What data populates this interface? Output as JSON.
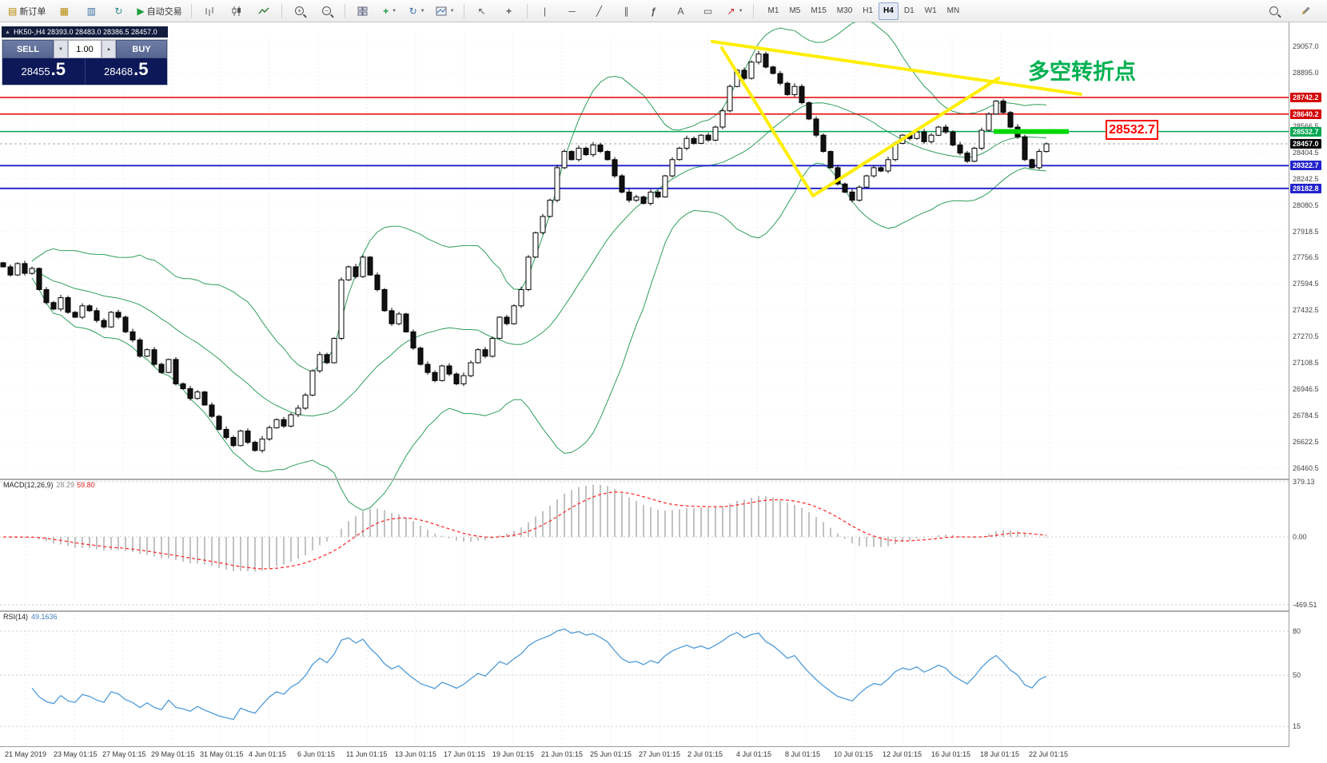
{
  "toolbar": {
    "new_order_label": "新订单",
    "auto_trading_label": "自动交易",
    "timeframes": [
      "M1",
      "M5",
      "M15",
      "M30",
      "H1",
      "H4",
      "D1",
      "W1",
      "MN"
    ],
    "active_timeframe": "H4"
  },
  "icons": {
    "market_watch": "▦",
    "data_window": "▥",
    "navigator": "▤",
    "play": "▶",
    "plus": "+",
    "minus": "−",
    "refresh": "↻",
    "cursor": "↖",
    "crosshair": "+",
    "vline": "|",
    "hline": "─",
    "tline": "╱",
    "channel": "∥",
    "fibo": "ƒ",
    "text": "A",
    "label": "▭",
    "arrows": "↗",
    "caret": "▼",
    "caret_up": "▲"
  },
  "symbol_bar": {
    "text": "HK50-,H4  28393.0 28483.0 28386.5 28457.0"
  },
  "trade_panel": {
    "sell_label": "SELL",
    "buy_label": "BUY",
    "volume": "1.00",
    "sell_price_main": "28455",
    "sell_price_big": ".5",
    "buy_price_main": "28468",
    "buy_price_big": ".5"
  },
  "annotations": {
    "turning_point": "多空转折点",
    "price_tag": "28532.7"
  },
  "price_scale": {
    "plain": [
      29057.0,
      28895.0,
      28566.5,
      28404.5,
      28242.5,
      28080.5,
      27918.5,
      27756.5,
      27594.5,
      27432.5,
      27270.5,
      27108.5,
      26946.5,
      26784.5,
      26622.5,
      26460.5
    ],
    "badges": [
      {
        "value": "28742.2",
        "color": "#d40000"
      },
      {
        "value": "28640.2",
        "color": "#d40000"
      },
      {
        "value": "28532.7",
        "color": "#00a651"
      },
      {
        "value": "28457.0",
        "color": "#000000"
      },
      {
        "value": "28322.7",
        "color": "#2222cc"
      },
      {
        "value": "28182.8",
        "color": "#2222cc"
      }
    ]
  },
  "macd_panel": {
    "label": "MACD(12,26,9)",
    "value_main": "28.29",
    "value_signal": "59.80",
    "axis": [
      "379.13",
      "0.00",
      "-469.51"
    ]
  },
  "rsi_panel": {
    "label": "RSI(14)",
    "value": "49.1636",
    "axis": [
      "80",
      "50",
      "15"
    ]
  },
  "time_axis": [
    "21 May 2019",
    "23 May 01:15",
    "27 May 01:15",
    "29 May 01:15",
    "31 May 01:15",
    "4 Jun 01:15",
    "6 Jun 01:15",
    "11 Jun 01:15",
    "13 Jun 01:15",
    "17 Jun 01:15",
    "19 Jun 01:15",
    "21 Jun 01:15",
    "25 Jun 01:15",
    "27 Jun 01:15",
    "2 Jul 01:15",
    "4 Jul 01:15",
    "8 Jul 01:15",
    "10 Jul 01:15",
    "12 Jul 01:15",
    "16 Jul 01:15",
    "18 Jul 01:15",
    "22 Jul 01:15"
  ],
  "chart_data": {
    "type": "candlestick",
    "symbol": "HK50-",
    "timeframe": "H4",
    "ohlc_header": {
      "open": "28393.0",
      "high": "28483.0",
      "low": "28386.5",
      "close": "28457.0"
    },
    "y_axis": {
      "top": 29057.0,
      "bottom": 26460.5
    },
    "levels": {
      "resistance_red": [
        28742.2,
        28640.2
      ],
      "pivot_green": 28532.7,
      "current": 28457.0,
      "support_blue": [
        28322.7,
        28182.8
      ]
    },
    "indicators": {
      "bollinger_period": 20,
      "macd": [
        12,
        26,
        9
      ],
      "rsi_period": 14
    },
    "closes": [
      27700,
      27650,
      27720,
      27660,
      27690,
      27560,
      27480,
      27440,
      27510,
      27420,
      27390,
      27460,
      27430,
      27370,
      27330,
      27420,
      27390,
      27300,
      27250,
      27150,
      27190,
      27100,
      27050,
      27130,
      26980,
      26950,
      26890,
      26930,
      26850,
      26780,
      26700,
      26650,
      26600,
      26690,
      26620,
      26570,
      26640,
      26710,
      26760,
      26720,
      26790,
      26830,
      26910,
      27060,
      27160,
      27110,
      27260,
      27620,
      27700,
      27640,
      27760,
      27650,
      27560,
      27430,
      27350,
      27410,
      27300,
      27200,
      27100,
      27050,
      27000,
      27090,
      27040,
      26980,
      27030,
      27110,
      27190,
      27150,
      27260,
      27390,
      27350,
      27460,
      27560,
      27760,
      27910,
      28010,
      28110,
      28310,
      28410,
      28360,
      28430,
      28390,
      28450,
      28410,
      28360,
      28260,
      28160,
      28110,
      28130,
      28090,
      28160,
      28130,
      28260,
      28360,
      28430,
      28490,
      28460,
      28510,
      28480,
      28560,
      28660,
      28810,
      28910,
      28860,
      28960,
      29010,
      28930,
      28890,
      28830,
      28760,
      28810,
      28710,
      28610,
      28510,
      28410,
      28310,
      28210,
      28160,
      28110,
      28190,
      28260,
      28310,
      28290,
      28360,
      28460,
      28510,
      28490,
      28530,
      28470,
      28510,
      28560,
      28530,
      28450,
      28400,
      28350,
      28430,
      28540,
      28640,
      28720,
      28650,
      28560,
      28500,
      28360,
      28310,
      28410,
      28457
    ]
  }
}
